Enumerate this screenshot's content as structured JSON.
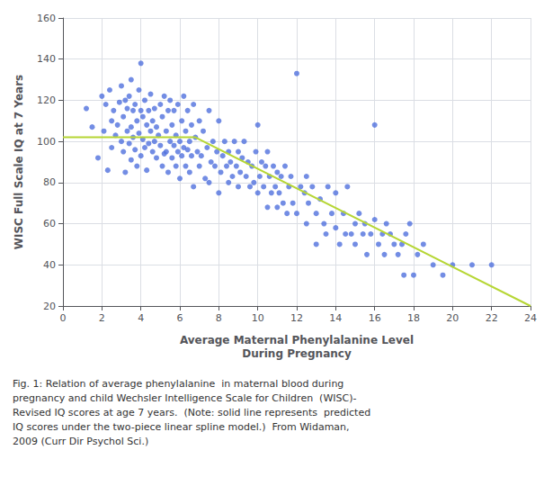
{
  "chart_data": {
    "type": "scatter",
    "xlabel": "Average Maternal Phenylalanine Level\nDuring Pregnancy",
    "ylabel": "WISC Full Scale IQ at 7 Years",
    "caption": "Fig. 1: Relation of average phenylalanine  in maternal blood during\npregnancy and child Wechsler Intelligence Scale for Children  (WISC)-\nRevised IQ scores at age 7 years.  (Note: solid line represents  predicted\nIQ scores under the two-piece linear spline model.)  From Widaman,\n2009 (Curr Dir Psychol Sci.)",
    "xlim": [
      0,
      24
    ],
    "ylim": [
      20,
      160
    ],
    "xticks": [
      0,
      2,
      4,
      6,
      8,
      10,
      12,
      14,
      16,
      18,
      20,
      22,
      24
    ],
    "yticks": [
      20,
      40,
      60,
      80,
      100,
      120,
      140,
      160
    ],
    "grid": true,
    "series": [
      {
        "type": "scatter",
        "x": [
          1.2,
          1.5,
          1.8,
          2.0,
          2.1,
          2.2,
          2.3,
          2.4,
          2.5,
          2.5,
          2.6,
          2.7,
          2.8,
          2.9,
          3.0,
          3.0,
          3.1,
          3.1,
          3.2,
          3.2,
          3.3,
          3.3,
          3.4,
          3.4,
          3.5,
          3.5,
          3.5,
          3.6,
          3.6,
          3.7,
          3.7,
          3.8,
          3.8,
          3.9,
          3.9,
          4.0,
          4.0,
          4.0,
          4.1,
          4.1,
          4.2,
          4.2,
          4.3,
          4.3,
          4.4,
          4.4,
          4.5,
          4.5,
          4.6,
          4.6,
          4.7,
          4.7,
          4.8,
          4.8,
          4.9,
          5.0,
          5.0,
          5.1,
          5.1,
          5.2,
          5.2,
          5.3,
          5.3,
          5.4,
          5.4,
          5.5,
          5.5,
          5.6,
          5.6,
          5.7,
          5.7,
          5.8,
          5.8,
          5.9,
          5.9,
          6.0,
          6.0,
          6.1,
          6.1,
          6.2,
          6.2,
          6.3,
          6.3,
          6.4,
          6.4,
          6.5,
          6.5,
          6.6,
          6.6,
          6.7,
          6.7,
          6.8,
          6.9,
          7.0,
          7.0,
          7.1,
          7.2,
          7.3,
          7.4,
          7.5,
          7.5,
          7.6,
          7.7,
          7.8,
          7.9,
          8.0,
          8.0,
          8.1,
          8.2,
          8.3,
          8.4,
          8.5,
          8.5,
          8.6,
          8.7,
          8.8,
          8.9,
          9.0,
          9.0,
          9.1,
          9.2,
          9.3,
          9.4,
          9.5,
          9.6,
          9.7,
          9.8,
          9.9,
          10.0,
          10.0,
          10.1,
          10.2,
          10.3,
          10.4,
          10.5,
          10.5,
          10.6,
          10.7,
          10.8,
          10.9,
          11.0,
          11.0,
          11.1,
          11.2,
          11.3,
          11.4,
          11.5,
          11.6,
          11.7,
          11.8,
          12.0,
          12.0,
          12.2,
          12.4,
          12.5,
          12.5,
          12.6,
          12.8,
          13.0,
          13.0,
          13.2,
          13.4,
          13.5,
          13.6,
          13.8,
          14.0,
          14.0,
          14.2,
          14.4,
          14.5,
          14.6,
          14.8,
          15.0,
          15.0,
          15.2,
          15.4,
          15.5,
          15.6,
          15.8,
          16.0,
          16.0,
          16.2,
          16.4,
          16.5,
          16.6,
          16.8,
          17.0,
          17.2,
          17.4,
          17.5,
          17.6,
          17.8,
          18.0,
          18.2,
          18.5,
          19.0,
          19.5,
          20.0,
          21.0,
          22.0
        ],
        "values": [
          116,
          107,
          92,
          122,
          105,
          118,
          86,
          125,
          110,
          97,
          115,
          103,
          108,
          119,
          100,
          127,
          95,
          112,
          85,
          120,
          105,
          116,
          99,
          122,
          91,
          107,
          130,
          102,
          115,
          96,
          118,
          88,
          110,
          104,
          125,
          93,
          115,
          138,
          101,
          112,
          97,
          120,
          86,
          108,
          99,
          115,
          105,
          123,
          95,
          110,
          100,
          116,
          92,
          107,
          103,
          98,
          118,
          88,
          112,
          94,
          122,
          105,
          95,
          115,
          85,
          100,
          120,
          92,
          108,
          98,
          115,
          88,
          103,
          95,
          118,
          100,
          82,
          110,
          93,
          122,
          97,
          105,
          88,
          115,
          96,
          100,
          85,
          108,
          93,
          118,
          78,
          102,
          95,
          88,
          110,
          93,
          105,
          82,
          97,
          115,
          80,
          90,
          100,
          88,
          95,
          75,
          110,
          85,
          93,
          100,
          88,
          80,
          95,
          90,
          83,
          100,
          88,
          78,
          95,
          85,
          92,
          100,
          83,
          90,
          78,
          88,
          80,
          95,
          75,
          108,
          83,
          90,
          78,
          88,
          68,
          95,
          83,
          75,
          88,
          78,
          68,
          85,
          75,
          83,
          70,
          88,
          65,
          78,
          83,
          70,
          65,
          133,
          78,
          75,
          60,
          83,
          70,
          78,
          65,
          50,
          72,
          60,
          55,
          78,
          65,
          58,
          75,
          50,
          65,
          55,
          78,
          55,
          60,
          50,
          65,
          55,
          60,
          45,
          55,
          62,
          108,
          50,
          55,
          45,
          60,
          55,
          50,
          45,
          50,
          35,
          55,
          60,
          35,
          45,
          50,
          40,
          35,
          40,
          40,
          40
        ]
      },
      {
        "type": "line",
        "x": [
          0,
          6.8,
          24
        ],
        "values": [
          102,
          102,
          20
        ]
      }
    ]
  }
}
